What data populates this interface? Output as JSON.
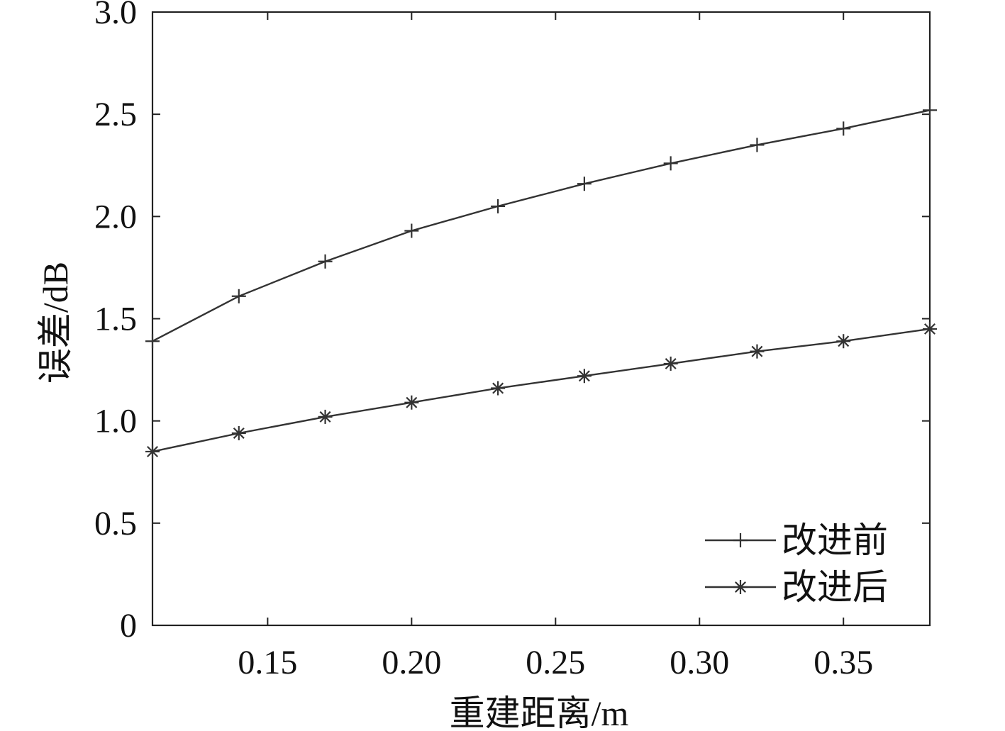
{
  "chart_data": {
    "type": "line",
    "title": "",
    "xlabel": "重建距离/m",
    "ylabel": "误差/dB",
    "xlim": [
      0.11,
      0.38
    ],
    "ylim": [
      0,
      3.0
    ],
    "x_ticks": [
      0.15,
      0.2,
      0.25,
      0.3,
      0.35
    ],
    "x_tick_labels": [
      "0.15",
      "0.20",
      "0.25",
      "0.30",
      "0.35"
    ],
    "y_ticks": [
      0,
      0.5,
      1.0,
      1.5,
      2.0,
      2.5,
      3.0
    ],
    "y_tick_labels": [
      "0",
      "0.5",
      "1.0",
      "1.5",
      "2.0",
      "2.5",
      "3.0"
    ],
    "grid": false,
    "legend_position": "bottom-right",
    "x": [
      0.11,
      0.14,
      0.17,
      0.2,
      0.23,
      0.26,
      0.29,
      0.32,
      0.35,
      0.38
    ],
    "series": [
      {
        "name": "改进前",
        "marker": "plus",
        "color": "#333333",
        "values": [
          1.39,
          1.61,
          1.78,
          1.93,
          2.05,
          2.16,
          2.26,
          2.35,
          2.43,
          2.52
        ]
      },
      {
        "name": "改进后",
        "marker": "asterisk",
        "color": "#333333",
        "values": [
          0.85,
          0.94,
          1.02,
          1.09,
          1.16,
          1.22,
          1.28,
          1.34,
          1.39,
          1.45
        ]
      }
    ]
  }
}
